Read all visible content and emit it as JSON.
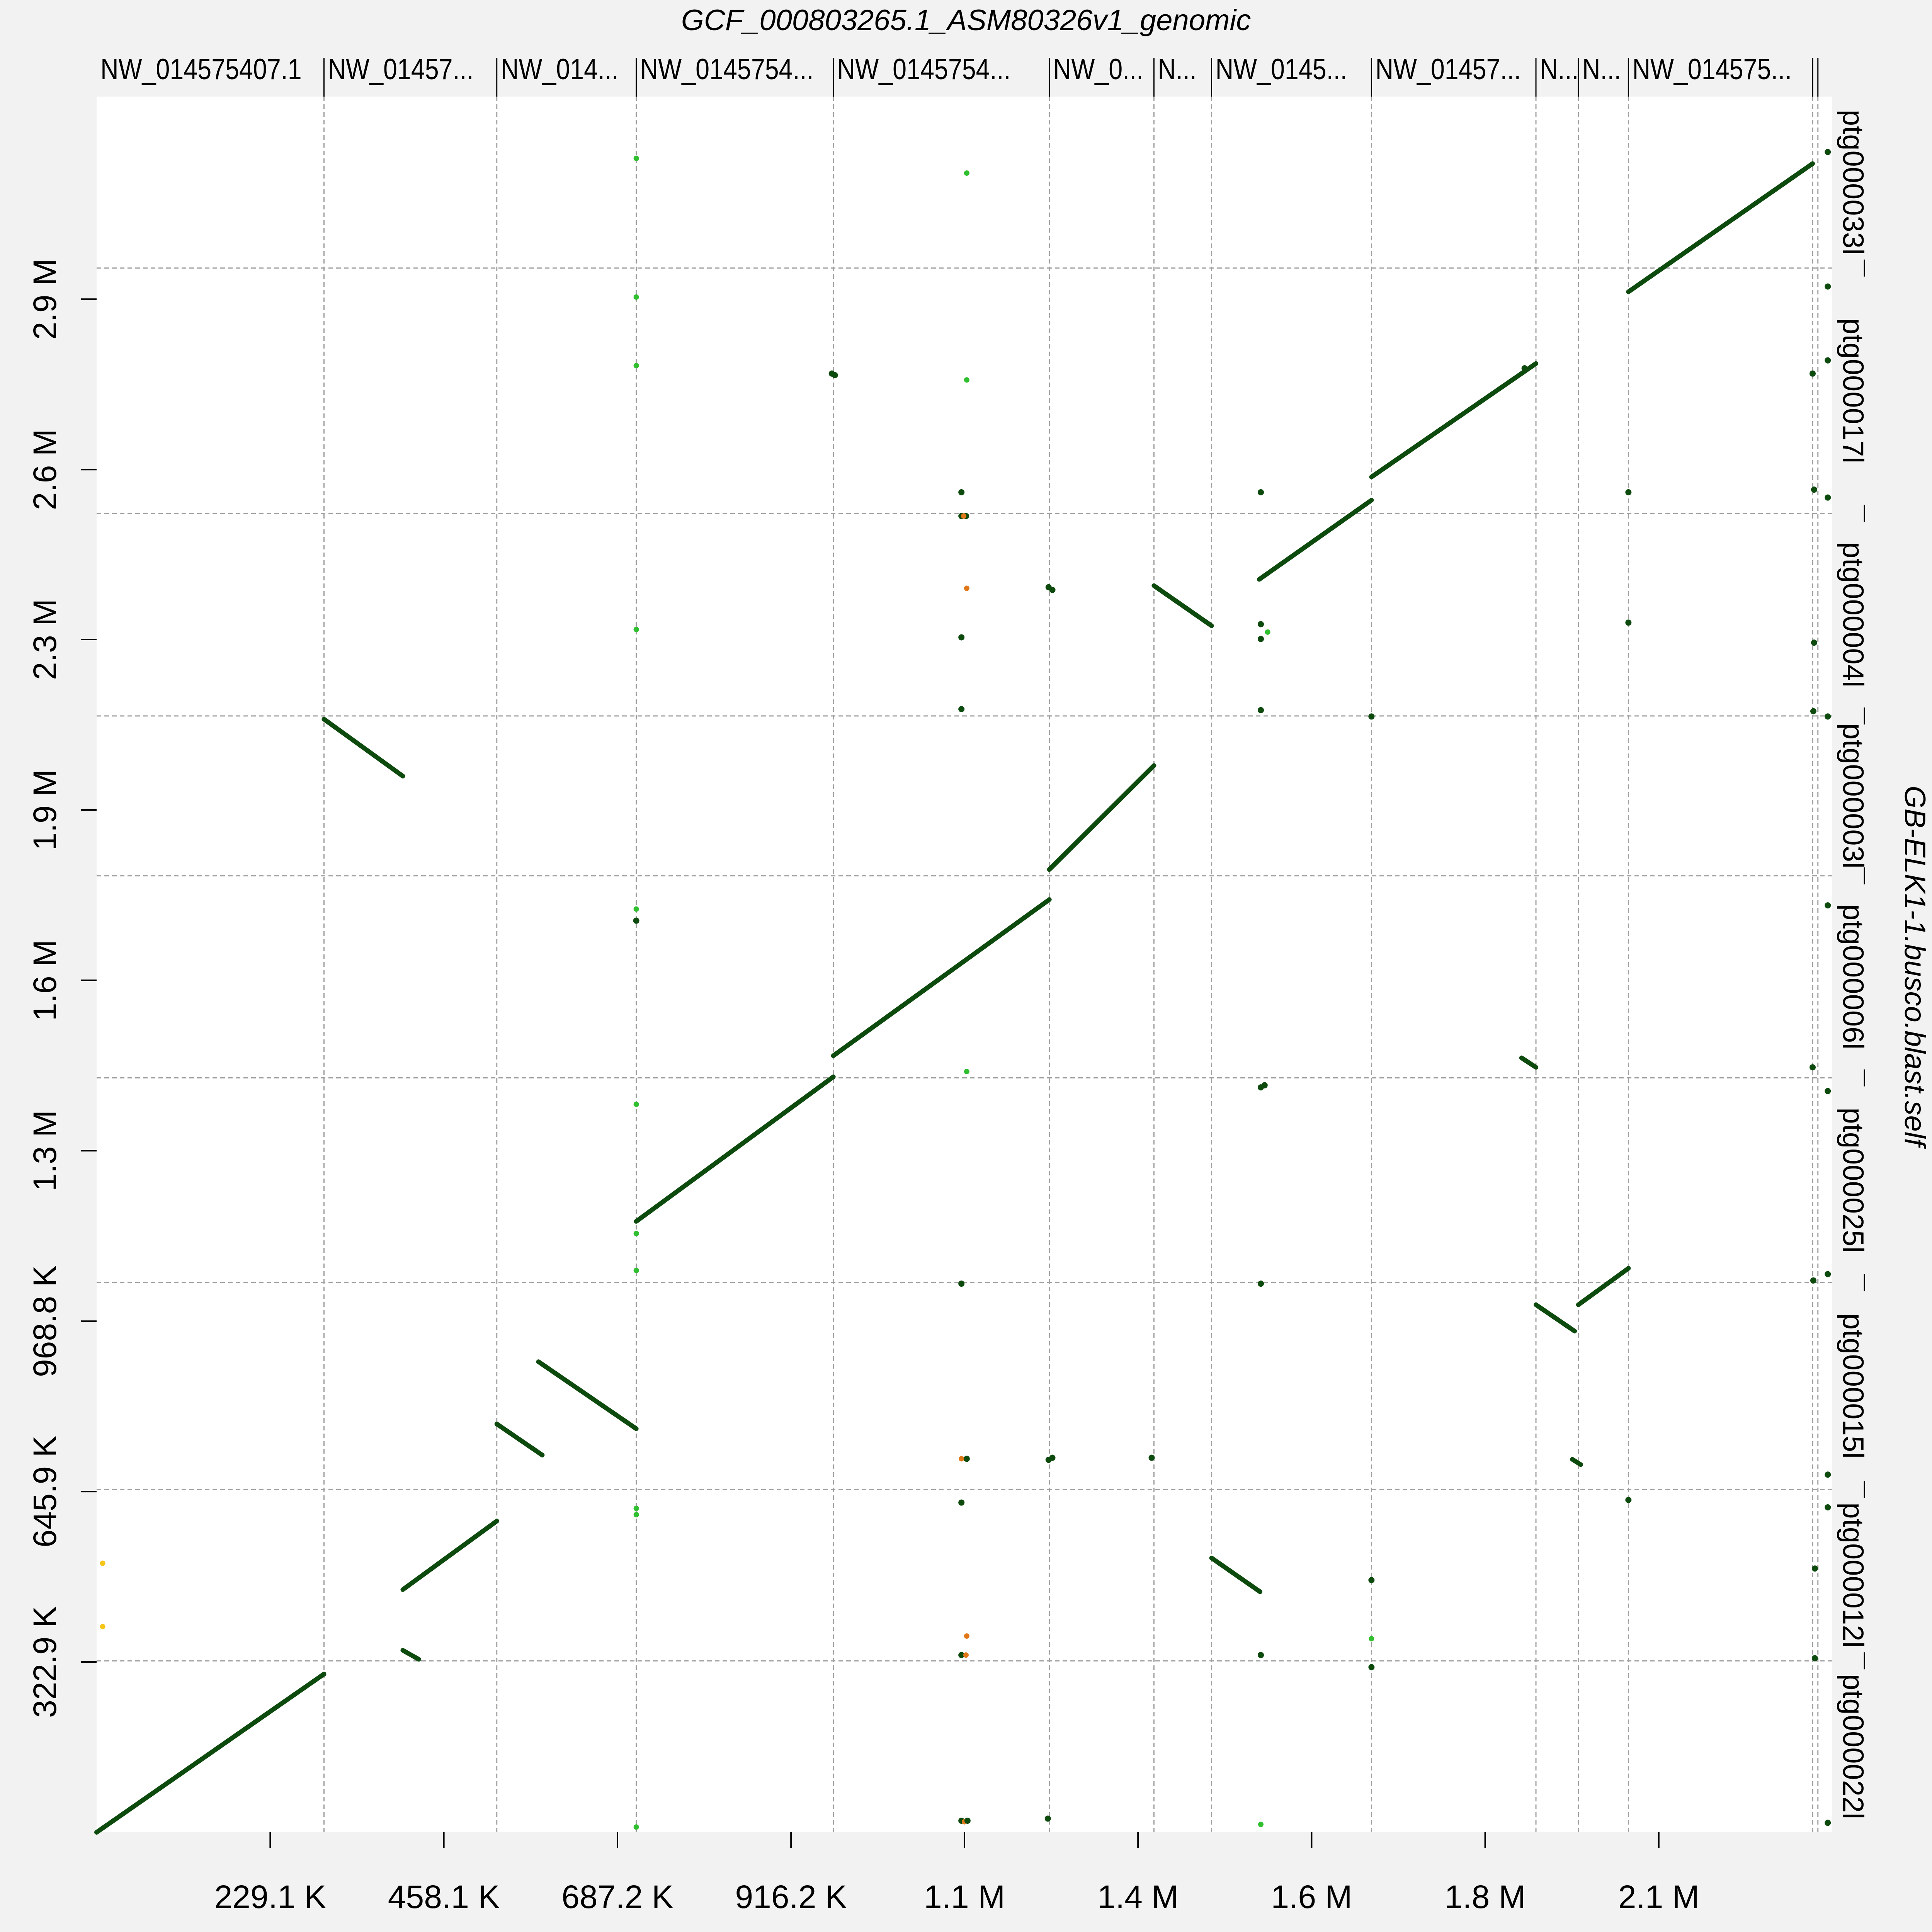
{
  "chart_data": {
    "type": "scatter",
    "title": "GCF_000803265.1_ASM80326v1_genomic",
    "xlabel": "",
    "ylabel": "GB-ELK1-1.busco.blast.self",
    "xlim": [
      0,
      2290000
    ],
    "ylim": [
      0,
      3290000
    ],
    "grid": true,
    "colors": {
      "strong": "#0d4a0d",
      "green": "#2fbf2f",
      "orange": "#e0781a",
      "yellow": "#f5c518",
      "gridline": "#a0a0a0"
    },
    "x_ticks": [
      {
        "value": 229100,
        "label": "229.1 K"
      },
      {
        "value": 458100,
        "label": "458.1 K"
      },
      {
        "value": 687200,
        "label": "687.2 K"
      },
      {
        "value": 916200,
        "label": "916.2 K"
      },
      {
        "value": 1145000,
        "label": "1.1 M"
      },
      {
        "value": 1374000,
        "label": "1.4 M"
      },
      {
        "value": 1603000,
        "label": "1.6 M"
      },
      {
        "value": 1832000,
        "label": "1.8 M"
      },
      {
        "value": 2061000,
        "label": "2.1 M"
      }
    ],
    "y_ticks": [
      {
        "value": 322900,
        "label": "322.9 K"
      },
      {
        "value": 645900,
        "label": "645.9 K"
      },
      {
        "value": 968800,
        "label": "968.8 K"
      },
      {
        "value": 1292000,
        "label": "1.3 M"
      },
      {
        "value": 1615000,
        "label": "1.6 M"
      },
      {
        "value": 1938000,
        "label": "1.9 M"
      },
      {
        "value": 2261000,
        "label": "2.3 M"
      },
      {
        "value": 2583000,
        "label": "2.6 M"
      },
      {
        "value": 2906000,
        "label": "2.9 M"
      }
    ],
    "x_sequences": [
      {
        "label": "NW_014575407.1",
        "start": 0,
        "end": 300000
      },
      {
        "label": "NW_01457...",
        "start": 300000,
        "end": 528000
      },
      {
        "label": "NW_014...",
        "start": 528000,
        "end": 712000
      },
      {
        "label": "NW_0145754...",
        "start": 712000,
        "end": 972000
      },
      {
        "label": "NW_0145754...",
        "start": 972000,
        "end": 1257000
      },
      {
        "label": "NW_0...",
        "start": 1257000,
        "end": 1395000
      },
      {
        "label": "N...",
        "start": 1395000,
        "end": 1471000
      },
      {
        "label": "NW_0145...",
        "start": 1471000,
        "end": 1682000
      },
      {
        "label": "NW_01457...",
        "start": 1682000,
        "end": 1899000
      },
      {
        "label": "N...",
        "start": 1899000,
        "end": 1955000
      },
      {
        "label": "N...",
        "start": 1955000,
        "end": 2021000
      },
      {
        "label": "NW_014575...",
        "start": 2021000,
        "end": 2264000
      },
      {
        "label": "",
        "start": 2264000,
        "end": 2271000
      },
      {
        "label": "",
        "start": 2271000,
        "end": 2290000
      }
    ],
    "y_sequences": [
      {
        "label": "ptg000022l",
        "start": 0,
        "end": 325000
      },
      {
        "label": "ptg000012l",
        "start": 325000,
        "end": 650000
      },
      {
        "label": "ptg000015l",
        "start": 650000,
        "end": 1042000
      },
      {
        "label": "ptg000025l",
        "start": 1042000,
        "end": 1430000
      },
      {
        "label": "ptg000006l",
        "start": 1430000,
        "end": 1813000
      },
      {
        "label": "ptg000003l",
        "start": 1813000,
        "end": 2116000
      },
      {
        "label": "ptg000004l",
        "start": 2116000,
        "end": 2500000
      },
      {
        "label": "ptg000017l",
        "start": 2500000,
        "end": 2965000
      },
      {
        "label": "ptg000033l",
        "start": 2965000,
        "end": 3290000
      }
    ],
    "segments": [
      {
        "x1": 0,
        "y1": 0,
        "x2": 300000,
        "y2": 300000
      },
      {
        "x1": 300000,
        "y1": 2110000,
        "x2": 404000,
        "y2": 2002000
      },
      {
        "x1": 404000,
        "y1": 460000,
        "x2": 528000,
        "y2": 590000
      },
      {
        "x1": 404000,
        "y1": 345000,
        "x2": 425000,
        "y2": 328000
      },
      {
        "x1": 528000,
        "y1": 774000,
        "x2": 588000,
        "y2": 715000
      },
      {
        "x1": 583000,
        "y1": 892000,
        "x2": 712000,
        "y2": 765000
      },
      {
        "x1": 712000,
        "y1": 1158000,
        "x2": 972000,
        "y2": 1432000
      },
      {
        "x1": 972000,
        "y1": 1472000,
        "x2": 1257000,
        "y2": 1768000
      },
      {
        "x1": 1257000,
        "y1": 1825000,
        "x2": 1395000,
        "y2": 2022000
      },
      {
        "x1": 1395000,
        "y1": 2363000,
        "x2": 1471000,
        "y2": 2287000
      },
      {
        "x1": 1534000,
        "y1": 2375000,
        "x2": 1682000,
        "y2": 2525000
      },
      {
        "x1": 1682000,
        "y1": 2569000,
        "x2": 1899000,
        "y2": 2784000
      },
      {
        "x1": 1471000,
        "y1": 520000,
        "x2": 1535000,
        "y2": 456000
      },
      {
        "x1": 1899000,
        "y1": 1000000,
        "x2": 1950000,
        "y2": 950000
      },
      {
        "x1": 1955000,
        "y1": 1000000,
        "x2": 2021000,
        "y2": 1069000
      },
      {
        "x1": 2021000,
        "y1": 2920000,
        "x2": 2264000,
        "y2": 3163000
      },
      {
        "x1": 1880000,
        "y1": 1468000,
        "x2": 1899000,
        "y2": 1450000
      },
      {
        "x1": 1947000,
        "y1": 707000,
        "x2": 1958000,
        "y2": 697000
      }
    ],
    "points": [
      {
        "x": 712000,
        "y": 3173000,
        "c": "green"
      },
      {
        "x": 712000,
        "y": 2910000,
        "c": "green"
      },
      {
        "x": 712000,
        "y": 2780000,
        "c": "green"
      },
      {
        "x": 712000,
        "y": 2280000,
        "c": "green"
      },
      {
        "x": 712000,
        "y": 1750000,
        "c": "green"
      },
      {
        "x": 712000,
        "y": 1728000,
        "c": "strong"
      },
      {
        "x": 712000,
        "y": 1380000,
        "c": "green"
      },
      {
        "x": 712000,
        "y": 1135000,
        "c": "green"
      },
      {
        "x": 712000,
        "y": 1065000,
        "c": "green"
      },
      {
        "x": 712000,
        "y": 602000,
        "c": "green"
      },
      {
        "x": 712000,
        "y": 614000,
        "c": "green"
      },
      {
        "x": 712000,
        "y": 10000,
        "c": "green"
      },
      {
        "x": 1148000,
        "y": 3145000,
        "c": "green"
      },
      {
        "x": 1148000,
        "y": 2753000,
        "c": "green"
      },
      {
        "x": 1148000,
        "y": 1442000,
        "c": "green"
      },
      {
        "x": 1141000,
        "y": 2540000,
        "c": "strong"
      },
      {
        "x": 1141000,
        "y": 2495000,
        "c": "strong"
      },
      {
        "x": 1147000,
        "y": 2495000,
        "c": "strong"
      },
      {
        "x": 1144000,
        "y": 2495000,
        "c": "orange"
      },
      {
        "x": 1148000,
        "y": 2358000,
        "c": "orange"
      },
      {
        "x": 1141000,
        "y": 2265000,
        "c": "strong"
      },
      {
        "x": 1141000,
        "y": 2129000,
        "c": "strong"
      },
      {
        "x": 1141000,
        "y": 1040000,
        "c": "strong"
      },
      {
        "x": 1141000,
        "y": 708000,
        "c": "orange"
      },
      {
        "x": 1148000,
        "y": 708000,
        "c": "strong"
      },
      {
        "x": 1141000,
        "y": 625000,
        "c": "strong"
      },
      {
        "x": 1148000,
        "y": 372000,
        "c": "orange"
      },
      {
        "x": 1141000,
        "y": 336000,
        "c": "strong"
      },
      {
        "x": 1147000,
        "y": 336000,
        "c": "orange"
      },
      {
        "x": 1141000,
        "y": 22000,
        "c": "strong"
      },
      {
        "x": 1145000,
        "y": 20000,
        "c": "orange"
      },
      {
        "x": 1149000,
        "y": 22000,
        "c": "strong"
      },
      {
        "x": 970000,
        "y": 2765000,
        "c": "strong"
      },
      {
        "x": 974000,
        "y": 2762000,
        "c": "strong"
      },
      {
        "x": 1256000,
        "y": 2360000,
        "c": "strong"
      },
      {
        "x": 1261000,
        "y": 2355000,
        "c": "strong"
      },
      {
        "x": 1256000,
        "y": 706000,
        "c": "strong"
      },
      {
        "x": 1261000,
        "y": 710000,
        "c": "strong"
      },
      {
        "x": 1255000,
        "y": 26000,
        "c": "strong"
      },
      {
        "x": 1392000,
        "y": 710000,
        "c": "strong"
      },
      {
        "x": 1536000,
        "y": 2540000,
        "c": "strong"
      },
      {
        "x": 1536000,
        "y": 2290000,
        "c": "strong"
      },
      {
        "x": 1545000,
        "y": 2275000,
        "c": "green"
      },
      {
        "x": 1536000,
        "y": 2262000,
        "c": "strong"
      },
      {
        "x": 1536000,
        "y": 2127000,
        "c": "strong"
      },
      {
        "x": 1536000,
        "y": 1412000,
        "c": "strong"
      },
      {
        "x": 1541000,
        "y": 1416000,
        "c": "strong"
      },
      {
        "x": 1536000,
        "y": 1040000,
        "c": "strong"
      },
      {
        "x": 1536000,
        "y": 336000,
        "c": "strong"
      },
      {
        "x": 1536000,
        "y": 15000,
        "c": "green"
      },
      {
        "x": 1682000,
        "y": 2115000,
        "c": "strong"
      },
      {
        "x": 1682000,
        "y": 478000,
        "c": "strong"
      },
      {
        "x": 1682000,
        "y": 367000,
        "c": "green"
      },
      {
        "x": 1682000,
        "y": 313000,
        "c": "strong"
      },
      {
        "x": 1884000,
        "y": 2775000,
        "c": "strong"
      },
      {
        "x": 2021000,
        "y": 2540000,
        "c": "strong"
      },
      {
        "x": 2021000,
        "y": 2293000,
        "c": "strong"
      },
      {
        "x": 2021000,
        "y": 630000,
        "c": "strong"
      },
      {
        "x": 2264000,
        "y": 2765000,
        "c": "strong"
      },
      {
        "x": 2266000,
        "y": 2545000,
        "c": "strong"
      },
      {
        "x": 2266000,
        "y": 2255000,
        "c": "strong"
      },
      {
        "x": 2265000,
        "y": 2125000,
        "c": "strong"
      },
      {
        "x": 2264000,
        "y": 1450000,
        "c": "strong"
      },
      {
        "x": 2265000,
        "y": 1046000,
        "c": "strong"
      },
      {
        "x": 2267000,
        "y": 500000,
        "c": "strong"
      },
      {
        "x": 2267000,
        "y": 330000,
        "c": "strong"
      },
      {
        "x": 2284000,
        "y": 3185000,
        "c": "strong"
      },
      {
        "x": 2284000,
        "y": 2930000,
        "c": "strong"
      },
      {
        "x": 2284000,
        "y": 2790000,
        "c": "strong"
      },
      {
        "x": 2284000,
        "y": 2530000,
        "c": "strong"
      },
      {
        "x": 2284000,
        "y": 2115000,
        "c": "strong"
      },
      {
        "x": 2284000,
        "y": 1757000,
        "c": "strong"
      },
      {
        "x": 2284000,
        "y": 1405000,
        "c": "strong"
      },
      {
        "x": 2284000,
        "y": 1058000,
        "c": "strong"
      },
      {
        "x": 2284000,
        "y": 678000,
        "c": "strong"
      },
      {
        "x": 2284000,
        "y": 616000,
        "c": "strong"
      },
      {
        "x": 2284000,
        "y": 18000,
        "c": "strong"
      },
      {
        "x": 8000,
        "y": 510000,
        "c": "yellow"
      },
      {
        "x": 8000,
        "y": 390000,
        "c": "yellow"
      }
    ]
  }
}
